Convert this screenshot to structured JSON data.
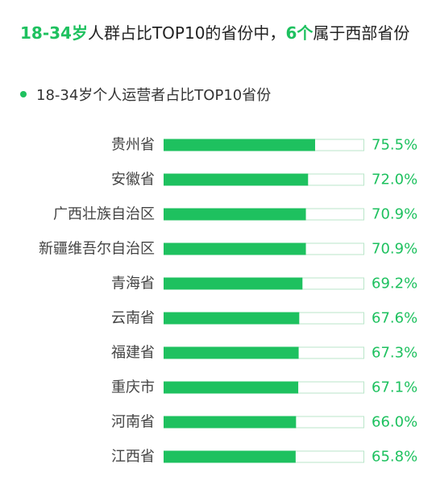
{
  "headline": {
    "part1": "18-34岁",
    "part2": "人群占比TOP10的省份中，",
    "part3": "6个",
    "part4": "属于西部省份"
  },
  "colors": {
    "accent": "#1ec15f",
    "track_border": "#b9e6c9"
  },
  "chart_data": {
    "type": "bar",
    "orientation": "horizontal",
    "title": "18-34岁个人运营者占比TOP10省份",
    "categories": [
      "贵州省",
      "安徽省",
      "广西壮族自治区",
      "新疆维吾尔自治区",
      "青海省",
      "云南省",
      "福建省",
      "重庆市",
      "河南省",
      "江西省"
    ],
    "values": [
      75.5,
      72.0,
      70.9,
      70.9,
      69.2,
      67.6,
      67.3,
      67.1,
      66.0,
      65.8
    ],
    "value_labels": [
      "75.5%",
      "72.0%",
      "70.9%",
      "70.9%",
      "69.2%",
      "67.6%",
      "67.3%",
      "67.1%",
      "66.0%",
      "65.8%"
    ],
    "xlim": [
      0,
      100
    ],
    "unit": "%",
    "grid": false,
    "legend": "none"
  }
}
